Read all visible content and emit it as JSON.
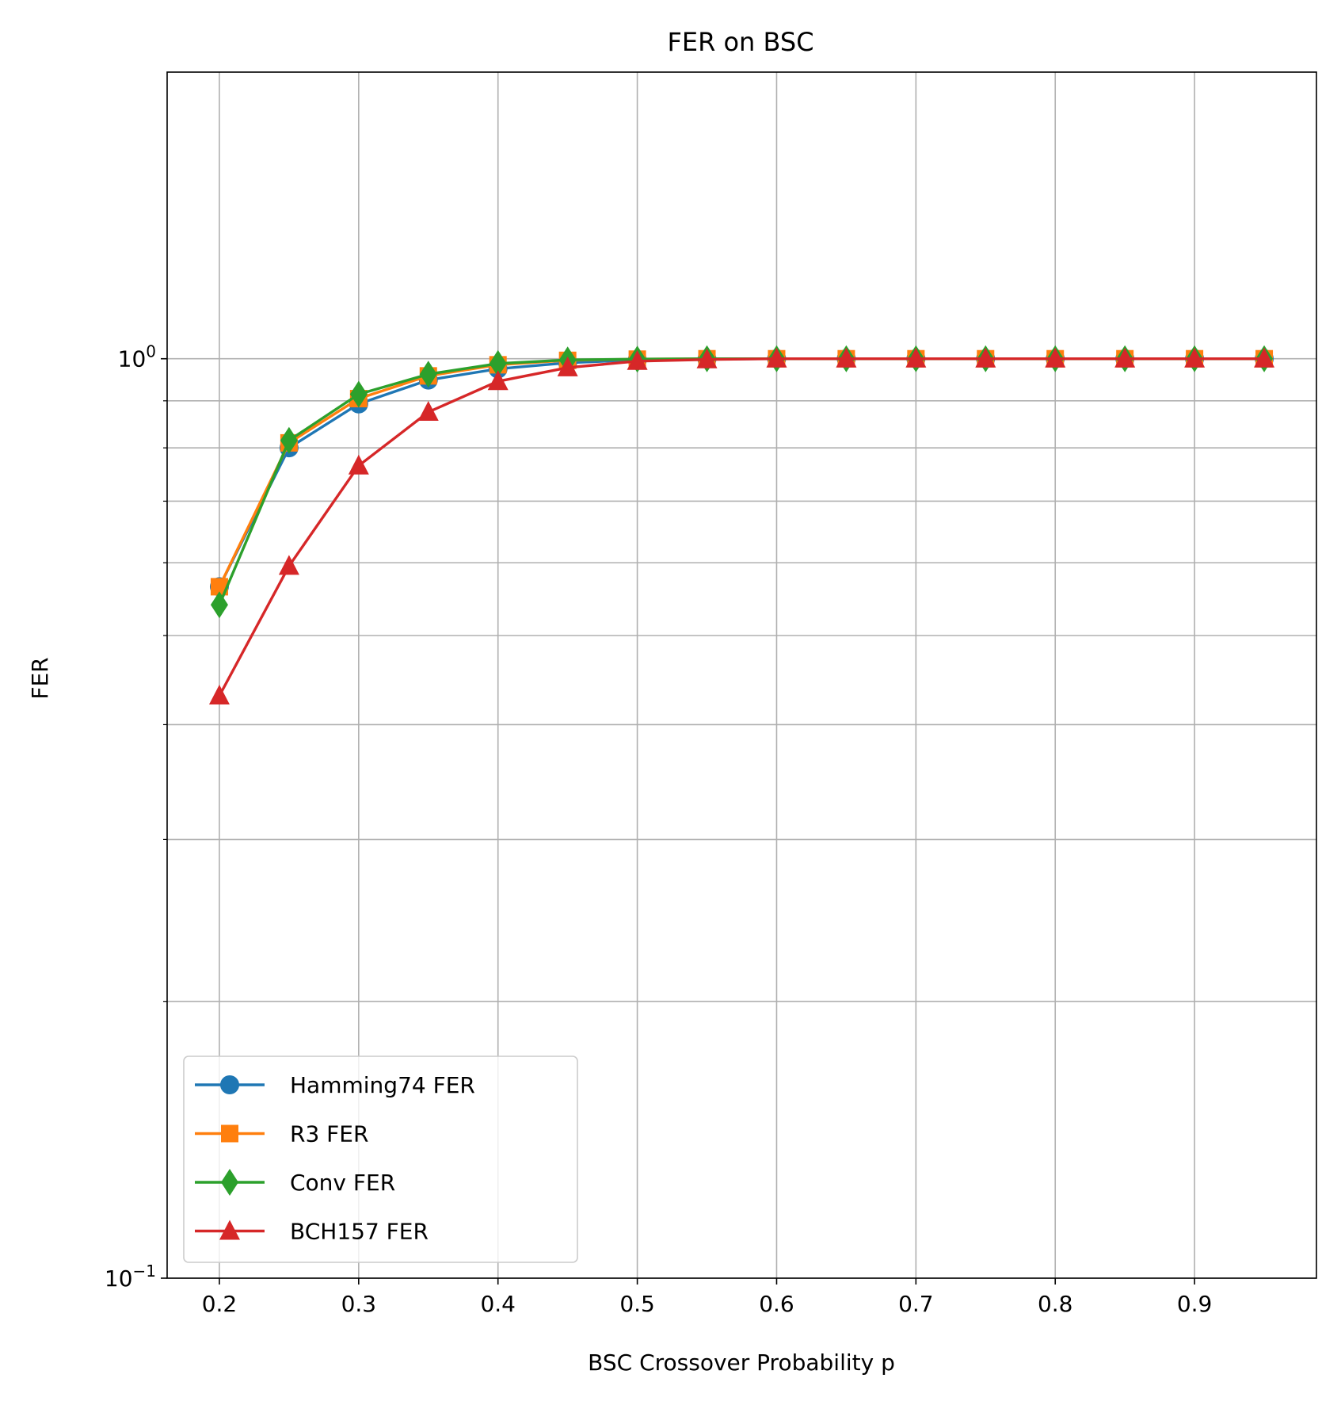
{
  "chart_data": {
    "type": "line",
    "title": "FER on BSC",
    "xlabel": "BSC Crossover Probability p",
    "ylabel": "FER",
    "yscale": "log",
    "xlim": [
      0.1625,
      0.9875
    ],
    "ylim": [
      0.1,
      2.05
    ],
    "grid": true,
    "legend_position": "lower-left",
    "x": [
      0.2,
      0.25,
      0.3,
      0.35,
      0.4,
      0.45,
      0.5,
      0.55,
      0.6,
      0.65,
      0.7,
      0.75,
      0.8,
      0.85,
      0.9,
      0.95
    ],
    "x_ticks": [
      "0.2",
      "0.3",
      "0.4",
      "0.5",
      "0.6",
      "0.7",
      "0.8",
      "0.9"
    ],
    "x_tick_values": [
      0.2,
      0.3,
      0.4,
      0.5,
      0.6,
      0.7,
      0.8,
      0.9
    ],
    "y_major_ticks": [
      {
        "value": 1.0,
        "base": "10",
        "exp": "0"
      },
      {
        "value": 0.1,
        "base": "10",
        "exp": "−1"
      }
    ],
    "y_minor_ticks": [
      0.2,
      0.3,
      0.4,
      0.5,
      0.6,
      0.7,
      0.8,
      0.9
    ],
    "series": [
      {
        "name": "Hamming74 FER",
        "color": "#1f77b4",
        "marker": "circle",
        "values": [
          0.565,
          0.8,
          0.893,
          0.948,
          0.975,
          0.99,
          0.997,
          0.999,
          1.0,
          1.0,
          1.0,
          1.0,
          1.0,
          1.0,
          1.0,
          1.0
        ]
      },
      {
        "name": "R3 FER",
        "color": "#ff7f0e",
        "marker": "square",
        "values": [
          0.565,
          0.81,
          0.905,
          0.958,
          0.985,
          0.996,
          0.999,
          1.0,
          1.0,
          1.0,
          1.0,
          1.0,
          1.0,
          1.0,
          1.0,
          1.0
        ]
      },
      {
        "name": "Conv FER",
        "color": "#2ca02c",
        "marker": "diamond",
        "values": [
          0.54,
          0.815,
          0.915,
          0.962,
          0.988,
          0.997,
          0.999,
          1.0,
          1.0,
          1.0,
          1.0,
          1.0,
          1.0,
          1.0,
          1.0,
          1.0
        ]
      },
      {
        "name": "BCH157 FER",
        "color": "#d62728",
        "marker": "triangle",
        "values": [
          0.43,
          0.595,
          0.765,
          0.875,
          0.945,
          0.978,
          0.994,
          0.998,
          1.0,
          1.0,
          1.0,
          1.0,
          1.0,
          1.0,
          1.0,
          1.0
        ]
      }
    ]
  }
}
